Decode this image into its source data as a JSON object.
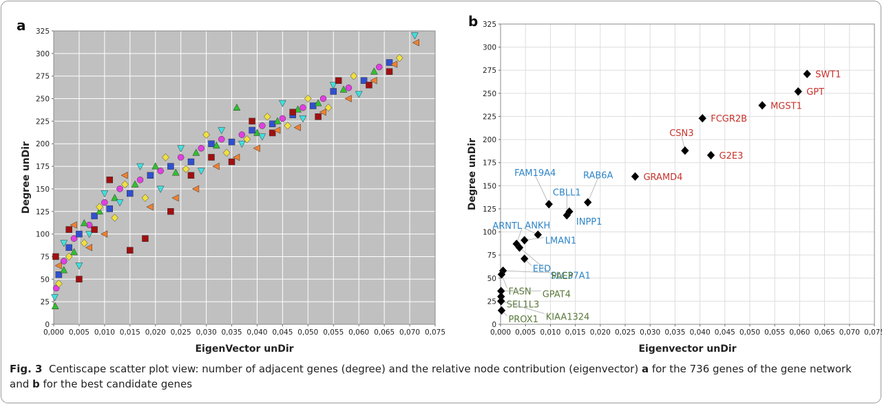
{
  "chart_data": [
    {
      "type": "scatter",
      "panel_label": "a",
      "xlabel": "EigenVector unDir",
      "ylabel": "Degree unDir",
      "background": "#c0c0c0",
      "grid": true,
      "grid_color": "#ffffff",
      "xlim": [
        0,
        0.075
      ],
      "ylim": [
        0,
        325
      ],
      "xticks": [
        {
          "value": 0,
          "label": "0,000"
        },
        {
          "value": 0.005,
          "label": "0,005"
        },
        {
          "value": 0.01,
          "label": "0,010"
        },
        {
          "value": 0.015,
          "label": "0,015"
        },
        {
          "value": 0.02,
          "label": "0,020"
        },
        {
          "value": 0.025,
          "label": "0,025"
        },
        {
          "value": 0.03,
          "label": "0,030"
        },
        {
          "value": 0.035,
          "label": "0,035"
        },
        {
          "value": 0.04,
          "label": "0,040"
        },
        {
          "value": 0.045,
          "label": "0,045"
        },
        {
          "value": 0.05,
          "label": "0,050"
        },
        {
          "value": 0.055,
          "label": "0,055"
        },
        {
          "value": 0.06,
          "label": "0,060"
        },
        {
          "value": 0.065,
          "label": "0,065"
        },
        {
          "value": 0.07,
          "label": "0,070"
        },
        {
          "value": 0.075,
          "label": "0,075"
        }
      ],
      "yticks": [
        0,
        25,
        50,
        75,
        100,
        125,
        150,
        175,
        200,
        225,
        250,
        275,
        300,
        325
      ],
      "series": [
        {
          "color": "#e040e0",
          "marker": "circle",
          "x": [
            0.0005,
            0.002,
            0.004,
            0.007,
            0.01,
            0.013,
            0.017,
            0.021,
            0.025,
            0.029,
            0.033,
            0.037,
            0.041,
            0.045,
            0.049,
            0.053,
            0.058,
            0.064
          ],
          "values": [
            40,
            70,
            95,
            110,
            135,
            150,
            160,
            170,
            185,
            195,
            205,
            210,
            220,
            228,
            240,
            250,
            262,
            285
          ]
        },
        {
          "color": "#3050d0",
          "marker": "square",
          "x": [
            0.001,
            0.003,
            0.005,
            0.008,
            0.011,
            0.015,
            0.019,
            0.023,
            0.027,
            0.031,
            0.035,
            0.039,
            0.043,
            0.047,
            0.051,
            0.055,
            0.061,
            0.066
          ],
          "values": [
            55,
            85,
            100,
            120,
            128,
            145,
            165,
            175,
            180,
            200,
            202,
            215,
            222,
            232,
            242,
            258,
            270,
            290
          ]
        },
        {
          "color": "#30c030",
          "marker": "triangle",
          "x": [
            0.0003,
            0.002,
            0.004,
            0.006,
            0.009,
            0.012,
            0.016,
            0.02,
            0.024,
            0.028,
            0.032,
            0.036,
            0.04,
            0.044,
            0.048,
            0.052,
            0.057,
            0.063
          ],
          "values": [
            20,
            60,
            80,
            112,
            125,
            140,
            155,
            175,
            168,
            190,
            198,
            240,
            212,
            225,
            238,
            245,
            260,
            280
          ]
        },
        {
          "color": "#f0e040",
          "marker": "diamond",
          "x": [
            0.001,
            0.003,
            0.006,
            0.009,
            0.012,
            0.014,
            0.018,
            0.022,
            0.026,
            0.03,
            0.034,
            0.038,
            0.042,
            0.046,
            0.05,
            0.054,
            0.059,
            0.068
          ],
          "values": [
            45,
            75,
            90,
            130,
            118,
            155,
            140,
            185,
            172,
            210,
            190,
            205,
            230,
            220,
            250,
            240,
            275,
            295
          ]
        },
        {
          "color": "#40e0e0",
          "marker": "triangle-down",
          "x": [
            0.0002,
            0.002,
            0.005,
            0.007,
            0.01,
            0.013,
            0.017,
            0.021,
            0.025,
            0.029,
            0.033,
            0.037,
            0.041,
            0.045,
            0.049,
            0.055,
            0.06,
            0.071
          ],
          "values": [
            30,
            90,
            65,
            100,
            145,
            135,
            175,
            150,
            195,
            170,
            215,
            200,
            208,
            245,
            228,
            265,
            255,
            320
          ]
        },
        {
          "color": "#a01010",
          "marker": "square",
          "x": [
            0.0004,
            0.003,
            0.005,
            0.008,
            0.011,
            0.015,
            0.018,
            0.023,
            0.027,
            0.031,
            0.035,
            0.039,
            0.043,
            0.047,
            0.052,
            0.056,
            0.062,
            0.066
          ],
          "values": [
            75,
            105,
            50,
            105,
            160,
            82,
            95,
            125,
            165,
            185,
            180,
            225,
            212,
            235,
            230,
            270,
            265,
            280
          ]
        },
        {
          "color": "#f08030",
          "marker": "triangle-left",
          "x": [
            0.001,
            0.004,
            0.007,
            0.01,
            0.014,
            0.019,
            0.024,
            0.028,
            0.032,
            0.036,
            0.04,
            0.044,
            0.048,
            0.053,
            0.058,
            0.063,
            0.067,
            0.0713
          ],
          "values": [
            65,
            110,
            85,
            100,
            165,
            130,
            140,
            150,
            175,
            185,
            195,
            215,
            218,
            235,
            250,
            270,
            288,
            312
          ]
        }
      ]
    },
    {
      "type": "scatter",
      "panel_label": "b",
      "xlabel": "Eigenvector unDir",
      "ylabel": "Degree unDir",
      "background": "#ffffff",
      "grid": true,
      "grid_color": "#dddddd",
      "xlim": [
        0,
        0.075
      ],
      "ylim": [
        0,
        325
      ],
      "xticks": [
        {
          "value": 0,
          "label": "0,000"
        },
        {
          "value": 0.005,
          "label": "0,005"
        },
        {
          "value": 0.01,
          "label": "0,010"
        },
        {
          "value": 0.015,
          "label": "0,015"
        },
        {
          "value": 0.02,
          "label": "0,020"
        },
        {
          "value": 0.025,
          "label": "0,025"
        },
        {
          "value": 0.03,
          "label": "0,030"
        },
        {
          "value": 0.035,
          "label": "0,035"
        },
        {
          "value": 0.04,
          "label": "0,040"
        },
        {
          "value": 0.045,
          "label": "0,045"
        },
        {
          "value": 0.05,
          "label": "0,050"
        },
        {
          "value": 0.055,
          "label": "0,055"
        },
        {
          "value": 0.06,
          "label": "0,060"
        },
        {
          "value": 0.065,
          "label": "0,065"
        },
        {
          "value": 0.07,
          "label": "0,070"
        },
        {
          "value": 0.075,
          "label": "0,075"
        }
      ],
      "yticks": [
        0,
        25,
        50,
        75,
        100,
        125,
        150,
        175,
        200,
        225,
        250,
        275,
        300,
        325
      ],
      "series": [
        {
          "color": "#000000",
          "marker": "diamond",
          "x": [
            0.0615,
            0.0597,
            0.0525,
            0.0405,
            0.037,
            0.0422,
            0.027,
            0.0097,
            0.0175,
            0.0133,
            0.0138,
            0.0075,
            0.0032,
            0.0048,
            0.0038,
            0.0048,
            0.0005,
            0.0002,
            0.0001,
            0.0001,
            0.0001,
            0.0002
          ],
          "values": [
            271,
            252,
            237,
            223,
            188,
            183,
            160,
            130,
            132,
            118,
            122,
            97,
            87,
            91,
            83,
            71,
            58,
            54,
            36,
            30,
            25,
            15
          ],
          "labels": [
            "SWT1",
            "GPT",
            "MGST1",
            "FCGR2B",
            "CSN3",
            "G2E3",
            "GRAMD4",
            "FAM19A4",
            "RAB6A",
            "CBLL1",
            "INPP1",
            "ANKH",
            "ARNTL",
            "LMAN1",
            "SLC37A1",
            "EED",
            "PAEP",
            "FASN",
            "GPAT4",
            "SEL1L3",
            "KIAA1324",
            "PROX1"
          ],
          "label_colors": [
            "#c8322b",
            "#c8322b",
            "#c8322b",
            "#c8322b",
            "#c8322b",
            "#c8322b",
            "#c8322b",
            "#2f86c8",
            "#2f86c8",
            "#2f86c8",
            "#2f86c8",
            "#2f86c8",
            "#2f86c8",
            "#2f86c8",
            "#2f86c8",
            "#2f86c8",
            "#5b7a3c",
            "#5b7a3c",
            "#5b7a3c",
            "#5b7a3c",
            "#5b7a3c",
            "#5b7a3c"
          ]
        }
      ]
    }
  ],
  "caption": [
    "Fig. 3",
    "  Centiscape scatter plot view: number of adjacent genes (degree) and the relative node contribution (eigenvector) ",
    "a",
    " for the 736 genes of the gene network and ",
    "b",
    " for the best candidate genes"
  ]
}
